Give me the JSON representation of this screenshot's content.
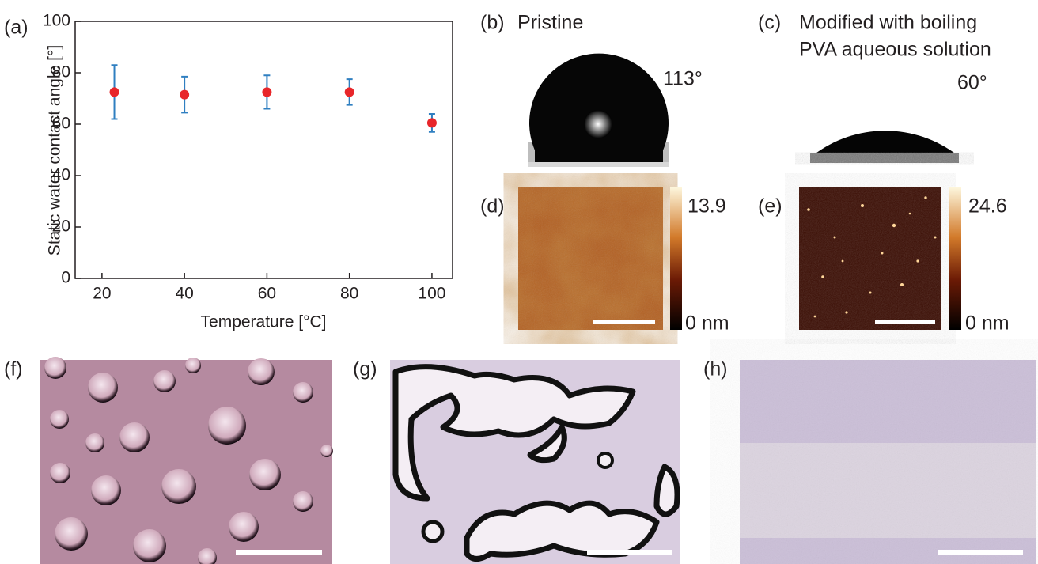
{
  "chart_data": {
    "type": "scatter",
    "panel_label": "(a)",
    "x_label": "Temperature [°C]",
    "y_label": "Static water contact angle [°]",
    "x": [
      23,
      40,
      60,
      80,
      100
    ],
    "values": [
      72.5,
      71.5,
      72.5,
      72.5,
      60.5
    ],
    "errors": [
      10.5,
      7,
      6.5,
      5,
      3.5
    ],
    "color": "#e8262a",
    "error_color": "#2f7fc1",
    "xlim": [
      13.5,
      105
    ],
    "ylim": [
      0,
      100
    ],
    "xticks": [
      20,
      40,
      60,
      80,
      100
    ],
    "yticks": [
      0,
      20,
      40,
      60,
      80,
      100
    ]
  },
  "panels": {
    "b": {
      "label": "(b)",
      "title": "Pristine",
      "angle": "113°"
    },
    "c": {
      "label": "(c)",
      "title_lines": [
        "Modified with boiling",
        "PVA aqueous solution"
      ],
      "angle": "60°"
    },
    "d": {
      "label": "(d)",
      "colorbar_max": "13.9",
      "colorbar_min": "0 nm"
    },
    "e": {
      "label": "(e)",
      "colorbar_max": "24.6",
      "colorbar_min": "0 nm"
    },
    "f": {
      "label": "(f)"
    },
    "g": {
      "label": "(g)"
    },
    "h": {
      "label": "(h)"
    }
  }
}
